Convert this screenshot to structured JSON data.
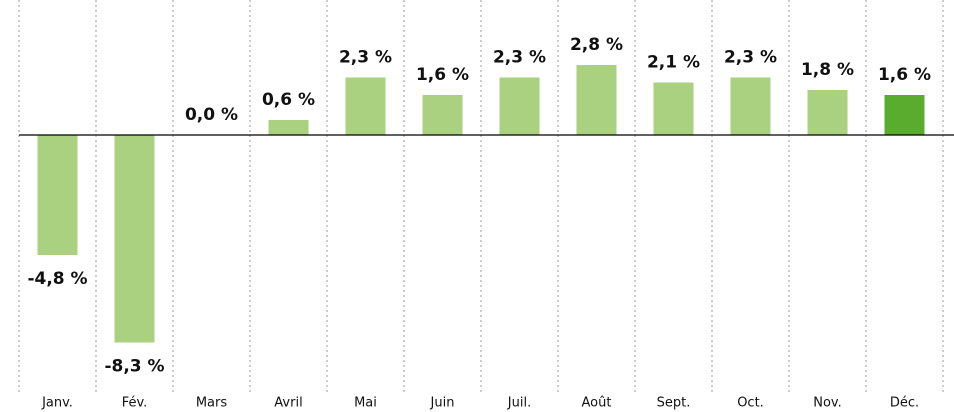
{
  "chart_data": {
    "type": "bar",
    "categories": [
      "Janv.",
      "Fév.",
      "Mars",
      "Avril",
      "Mai",
      "Juin",
      "Juil.",
      "Août",
      "Sept.",
      "Oct.",
      "Nov.",
      "Déc."
    ],
    "values": [
      -4.8,
      -8.3,
      0.0,
      0.6,
      2.3,
      1.6,
      2.3,
      2.8,
      2.1,
      2.3,
      1.8,
      1.6
    ],
    "value_labels": [
      "-4,8 %",
      "-8,3 %",
      "0,0 %",
      "0,6 %",
      "2,3 %",
      "1,6 %",
      "2,3 %",
      "2,8 %",
      "2,1 %",
      "2,3 %",
      "1,8 %",
      "1,6 %"
    ],
    "colors": [
      "#a9d17f",
      "#a9d17f",
      "#a9d17f",
      "#a9d17f",
      "#a9d17f",
      "#a9d17f",
      "#a9d17f",
      "#a9d17f",
      "#a9d17f",
      "#a9d17f",
      "#a9d17f",
      "#5aac2f"
    ],
    "ylim": [
      -10,
      5.4
    ]
  }
}
